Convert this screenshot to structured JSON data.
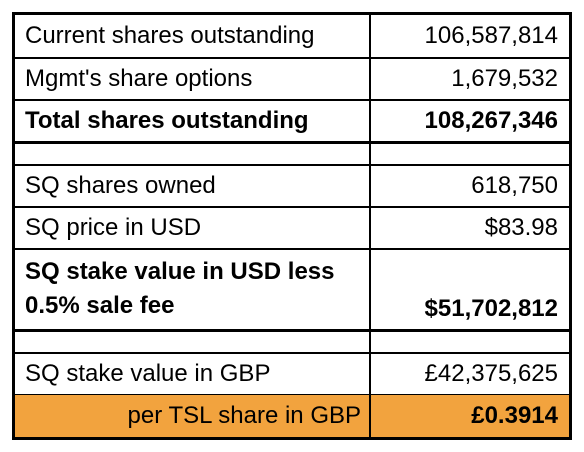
{
  "table": {
    "rows": [
      {
        "label": "Current shares outstanding",
        "value": "106,587,814"
      },
      {
        "label": "Mgmt's share options",
        "value": "1,679,532"
      },
      {
        "label": "Total shares outstanding",
        "value": "108,267,346"
      },
      {
        "label": "SQ shares owned",
        "value": "618,750"
      },
      {
        "label": "SQ price in USD",
        "value": "$83.98"
      },
      {
        "label": "SQ stake value in USD less 0.5% sale fee",
        "value": "$51,702,812"
      },
      {
        "label": "SQ stake value in GBP",
        "value": "£42,375,625"
      },
      {
        "label": "per TSL share in GBP",
        "value": "£0.3914"
      }
    ],
    "highlight_color": "#F2A33E"
  }
}
